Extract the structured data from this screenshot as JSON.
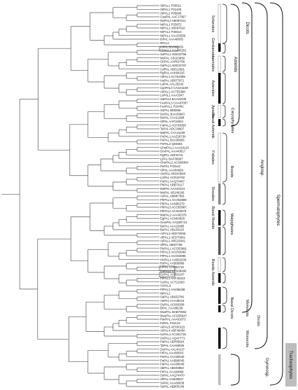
{
  "leaves": [
    "StPAL1 P35511",
    "StPAL1 P31426",
    "StPAL2 P35680",
    "CaaPAL AAF17067",
    "NaPAL2 AB097611",
    "NtPAL1 P25872",
    "NtPAL1 AB097610",
    "NtPAL2 P35513",
    "NtPAL1 AAA33599",
    "IbPAL AAA48605",
    "ItPAL2",
    "InPAL BAA86830",
    "CbPAL1 CAA05251",
    "SoPAL1 ADE02796",
    "MePAL CBJ23839",
    "GhPAL AAR02790",
    "SaPAL1 ADE02797",
    "CdPAL ABD12661",
    "RgPAL AAK84225",
    "AtPAL1 ACT53399",
    "HaPAL AB077971",
    "LaPAL AAL25242",
    "CjeiPAL3 CAG21169",
    "AtPAL1 ACT55398",
    "LsPAL1 AAA3347",
    "SaPAL3 BAA31035",
    "FeoPAL3 CAA87057",
    "FeoPAL1 P24481",
    "SoPAL BE5665",
    "DePAL BAA35843",
    "BvPAL CAA11998",
    "SlPAL AAP19302",
    "FaPAL2 ACF63058",
    "TaPAL ADC34907",
    "MaPAL CAA41169",
    "PvPAL1 AAZ29730",
    "PePAL BAA06665",
    "PsPAL2 Q04593",
    "GhmPAL1 AAA28120",
    "GmPAL AAA40817",
    "RgPAL ADF8716",
    "LjPAL BAF36967",
    "GhePAL2 ACS88384",
    "PePAL P19142",
    "SlPAL AAA84693",
    "AmPAL ABO43048",
    "LisPAL ACR15782",
    "PuPAL AAQ76487",
    "PhPAL ABB70117",
    "MaPAL AAA40224",
    "MsPAL AB146166",
    "VvPAL ABM67591",
    "PhPAL1 ACO53989",
    "PhPAL AAN05279",
    "PhPAL3 ACO53987",
    "PhPAL2 ACS53979",
    "MaPAL2 AAA82376",
    "EgPAL ACN64828",
    "GewPAL AAQ82741",
    "BePAL AAA22985",
    "BePAL ABL09126",
    "ArPAL2 AED70055",
    "AfPAL1 AED70961",
    "AtPAL1 ABC29341",
    "SfPAL ABI57768",
    "PtrPAL1 ACO53991",
    "PtPAL3 ACO53999",
    "PtPAL1 ACO53995",
    "HnPAL1 AAB52030",
    "RsPAL AAB09986",
    "ClPAL CAB53719",
    "CsPAL2 CBS08496",
    "CePAL AAR31107",
    "PtPAL1 AAF40223",
    "CePAL ACT21093",
    "VcPAL5",
    "PtPAL1 AAV86189",
    "NtPAL2",
    "SaPAL AB032786",
    "AePAL AAA48415",
    "OsPAL AC083309",
    "BPAL CAA88236",
    "MusPAL BAB70662",
    "MusPAL ACG56647",
    "PavPAL AAA61873",
    "PsPAL P19143",
    "AtPAL5 AEX50115",
    "AtPAL4 ABF46460",
    "ScPAL1 ACS61736",
    "OsPAL2 AQAYT71",
    "PaPAL ABP05924",
    "TaPAL CAA68036",
    "ZmPAL AAL40137",
    "PtPAL AAA80043",
    "PePAL AAA80040",
    "PaPAL AAB80045",
    "PaPAL AAA80046",
    "SbPAL AB049882",
    "PrPAL AAA84869",
    "SsPAL AAQ74470",
    "SfPAL AAB30837",
    "SvPAL AAA80638",
    "SsPAL ABB05148"
  ],
  "clades": {
    "solanales": "Solanales",
    "gentianales": "Gentianales",
    "lamiales": "Lamiales",
    "asterales": "Asterales",
    "apiales": "Apiales",
    "caryophyllales": "Caryophyllales",
    "basal_asterids": "Basal Asterids",
    "fabales": "Fabales",
    "rosales": "Rosales",
    "rosids": "Rosids",
    "basal_rosids": "Basal Rosids",
    "malpighiales": "Malpighiales",
    "rosids2": "Rosids",
    "asterids2": "Asterids",
    "monocots1": "Monocots",
    "dicots_basal": "Dicots",
    "basal_dicots": "Basal Dicots",
    "monocots2": "Monocots"
  },
  "groups": {
    "asterids": "Asterids",
    "dicots": "Dicots",
    "angiosp": "Angiosp.",
    "spermatophytes": "Spermatophytes",
    "gymnosp": "Gymnosp.",
    "tracheophytes": "Tracheophytes"
  }
}
